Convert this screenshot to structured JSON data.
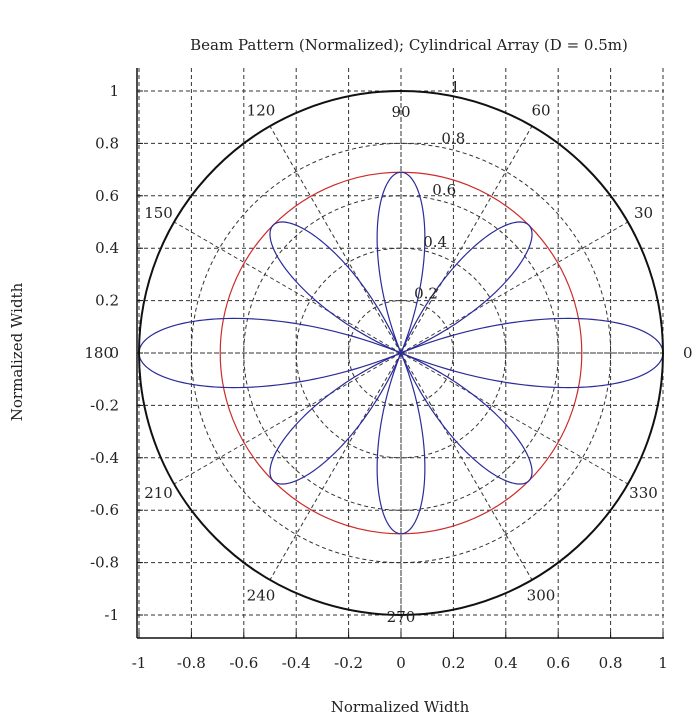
{
  "chart_data": {
    "type": "polar-line",
    "title": "Beam Pattern (Normalized); Cylindrical Array (D = 0.5m)",
    "xlabel": "Normalized Width",
    "ylabel": "Normalized Width",
    "xlim": [
      -1,
      1
    ],
    "ylim": [
      -1.1,
      1.1
    ],
    "x_ticks": [
      "-1",
      "-0.8",
      "-0.6",
      "-0.4",
      "-0.2",
      "0",
      "0.2",
      "0.4",
      "0.6",
      "0.8",
      "1"
    ],
    "y_ticks": [
      "1",
      "0.8",
      "0.6",
      "0.4",
      "0.2",
      "0",
      "-0.2",
      "-0.4",
      "-0.6",
      "-0.8",
      "-1"
    ],
    "radial_ticks": [
      "0.2",
      "0.4",
      "0.6",
      "0.8",
      "1"
    ],
    "angle_labels": [
      "0",
      "30",
      "60",
      "90",
      "120",
      "150",
      "180",
      "210",
      "240",
      "270",
      "300",
      "330"
    ],
    "grid": true,
    "colors": {
      "pattern": "#2b2b99",
      "reference_circle": "#cc2b2b",
      "outer_circle": "#111111"
    },
    "series": [
      {
        "kind": "circle",
        "radius": 0.69,
        "color": "#cc2b2b"
      },
      {
        "kind": "lobes",
        "color": "#2b2b99",
        "lobes": [
          {
            "center_deg": 0,
            "peak": 1.0
          },
          {
            "center_deg": 45,
            "peak": 0.69
          },
          {
            "center_deg": 90,
            "peak": 0.69
          },
          {
            "center_deg": 135,
            "peak": 0.69
          },
          {
            "center_deg": 180,
            "peak": 1.0
          },
          {
            "center_deg": 225,
            "peak": 0.69
          },
          {
            "center_deg": 270,
            "peak": 0.69
          },
          {
            "center_deg": 315,
            "peak": 0.69
          }
        ]
      }
    ]
  }
}
